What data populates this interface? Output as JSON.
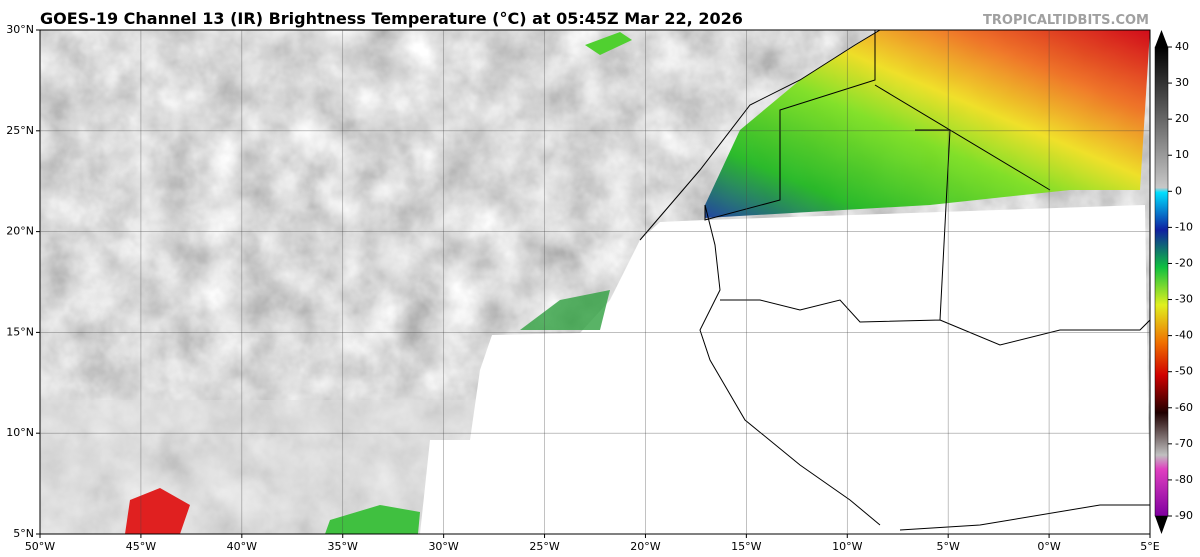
{
  "header": {
    "title": "GOES-19 Channel 13 (IR) Brightness Temperature (°C) at 05:45Z Mar 22, 2026",
    "watermark": "TROPICALTIDBITS.COM"
  },
  "map": {
    "lon_ticks": [
      "50°W",
      "45°W",
      "40°W",
      "35°W",
      "30°W",
      "25°W",
      "20°W",
      "15°W",
      "10°W",
      "5°W",
      "0°W",
      "5°E"
    ],
    "lat_ticks": [
      "30°N",
      "25°N",
      "20°N",
      "15°N",
      "10°N",
      "5°N"
    ]
  },
  "colorbar": {
    "ticks": [
      40,
      30,
      20,
      10,
      0,
      -10,
      -20,
      -30,
      -40,
      -50,
      -60,
      -70,
      -80,
      -90
    ]
  }
}
